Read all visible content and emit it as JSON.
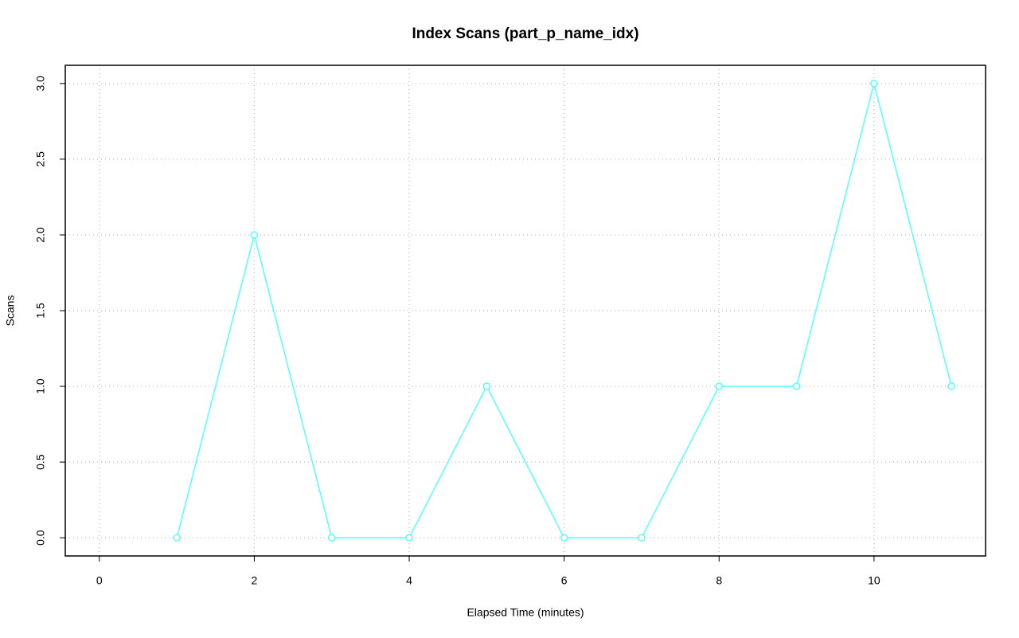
{
  "chart_data": {
    "type": "line",
    "title": "Index Scans (part_p_name_idx)",
    "xlabel": "Elapsed Time (minutes)",
    "ylabel": "Scans",
    "x": [
      1,
      2,
      3,
      4,
      5,
      6,
      7,
      8,
      9,
      10,
      11
    ],
    "series": [
      {
        "name": "part_p_name_idx",
        "color": "#55ffff",
        "values": [
          0,
          2,
          0,
          0,
          1,
          0,
          0,
          1,
          1,
          3,
          1
        ]
      }
    ],
    "xlim": [
      -0.44,
      11.44
    ],
    "xticks": [
      0,
      2,
      4,
      6,
      8,
      10
    ],
    "ylim": [
      -0.12,
      3.12
    ],
    "yticks": [
      {
        "value": 0,
        "label": "0.0"
      },
      0.5,
      {
        "value": 1,
        "label": "1.0"
      },
      1.5,
      {
        "value": 2,
        "label": "2.0"
      },
      2.5,
      {
        "value": 3,
        "label": "3.0"
      }
    ],
    "grid": true
  }
}
